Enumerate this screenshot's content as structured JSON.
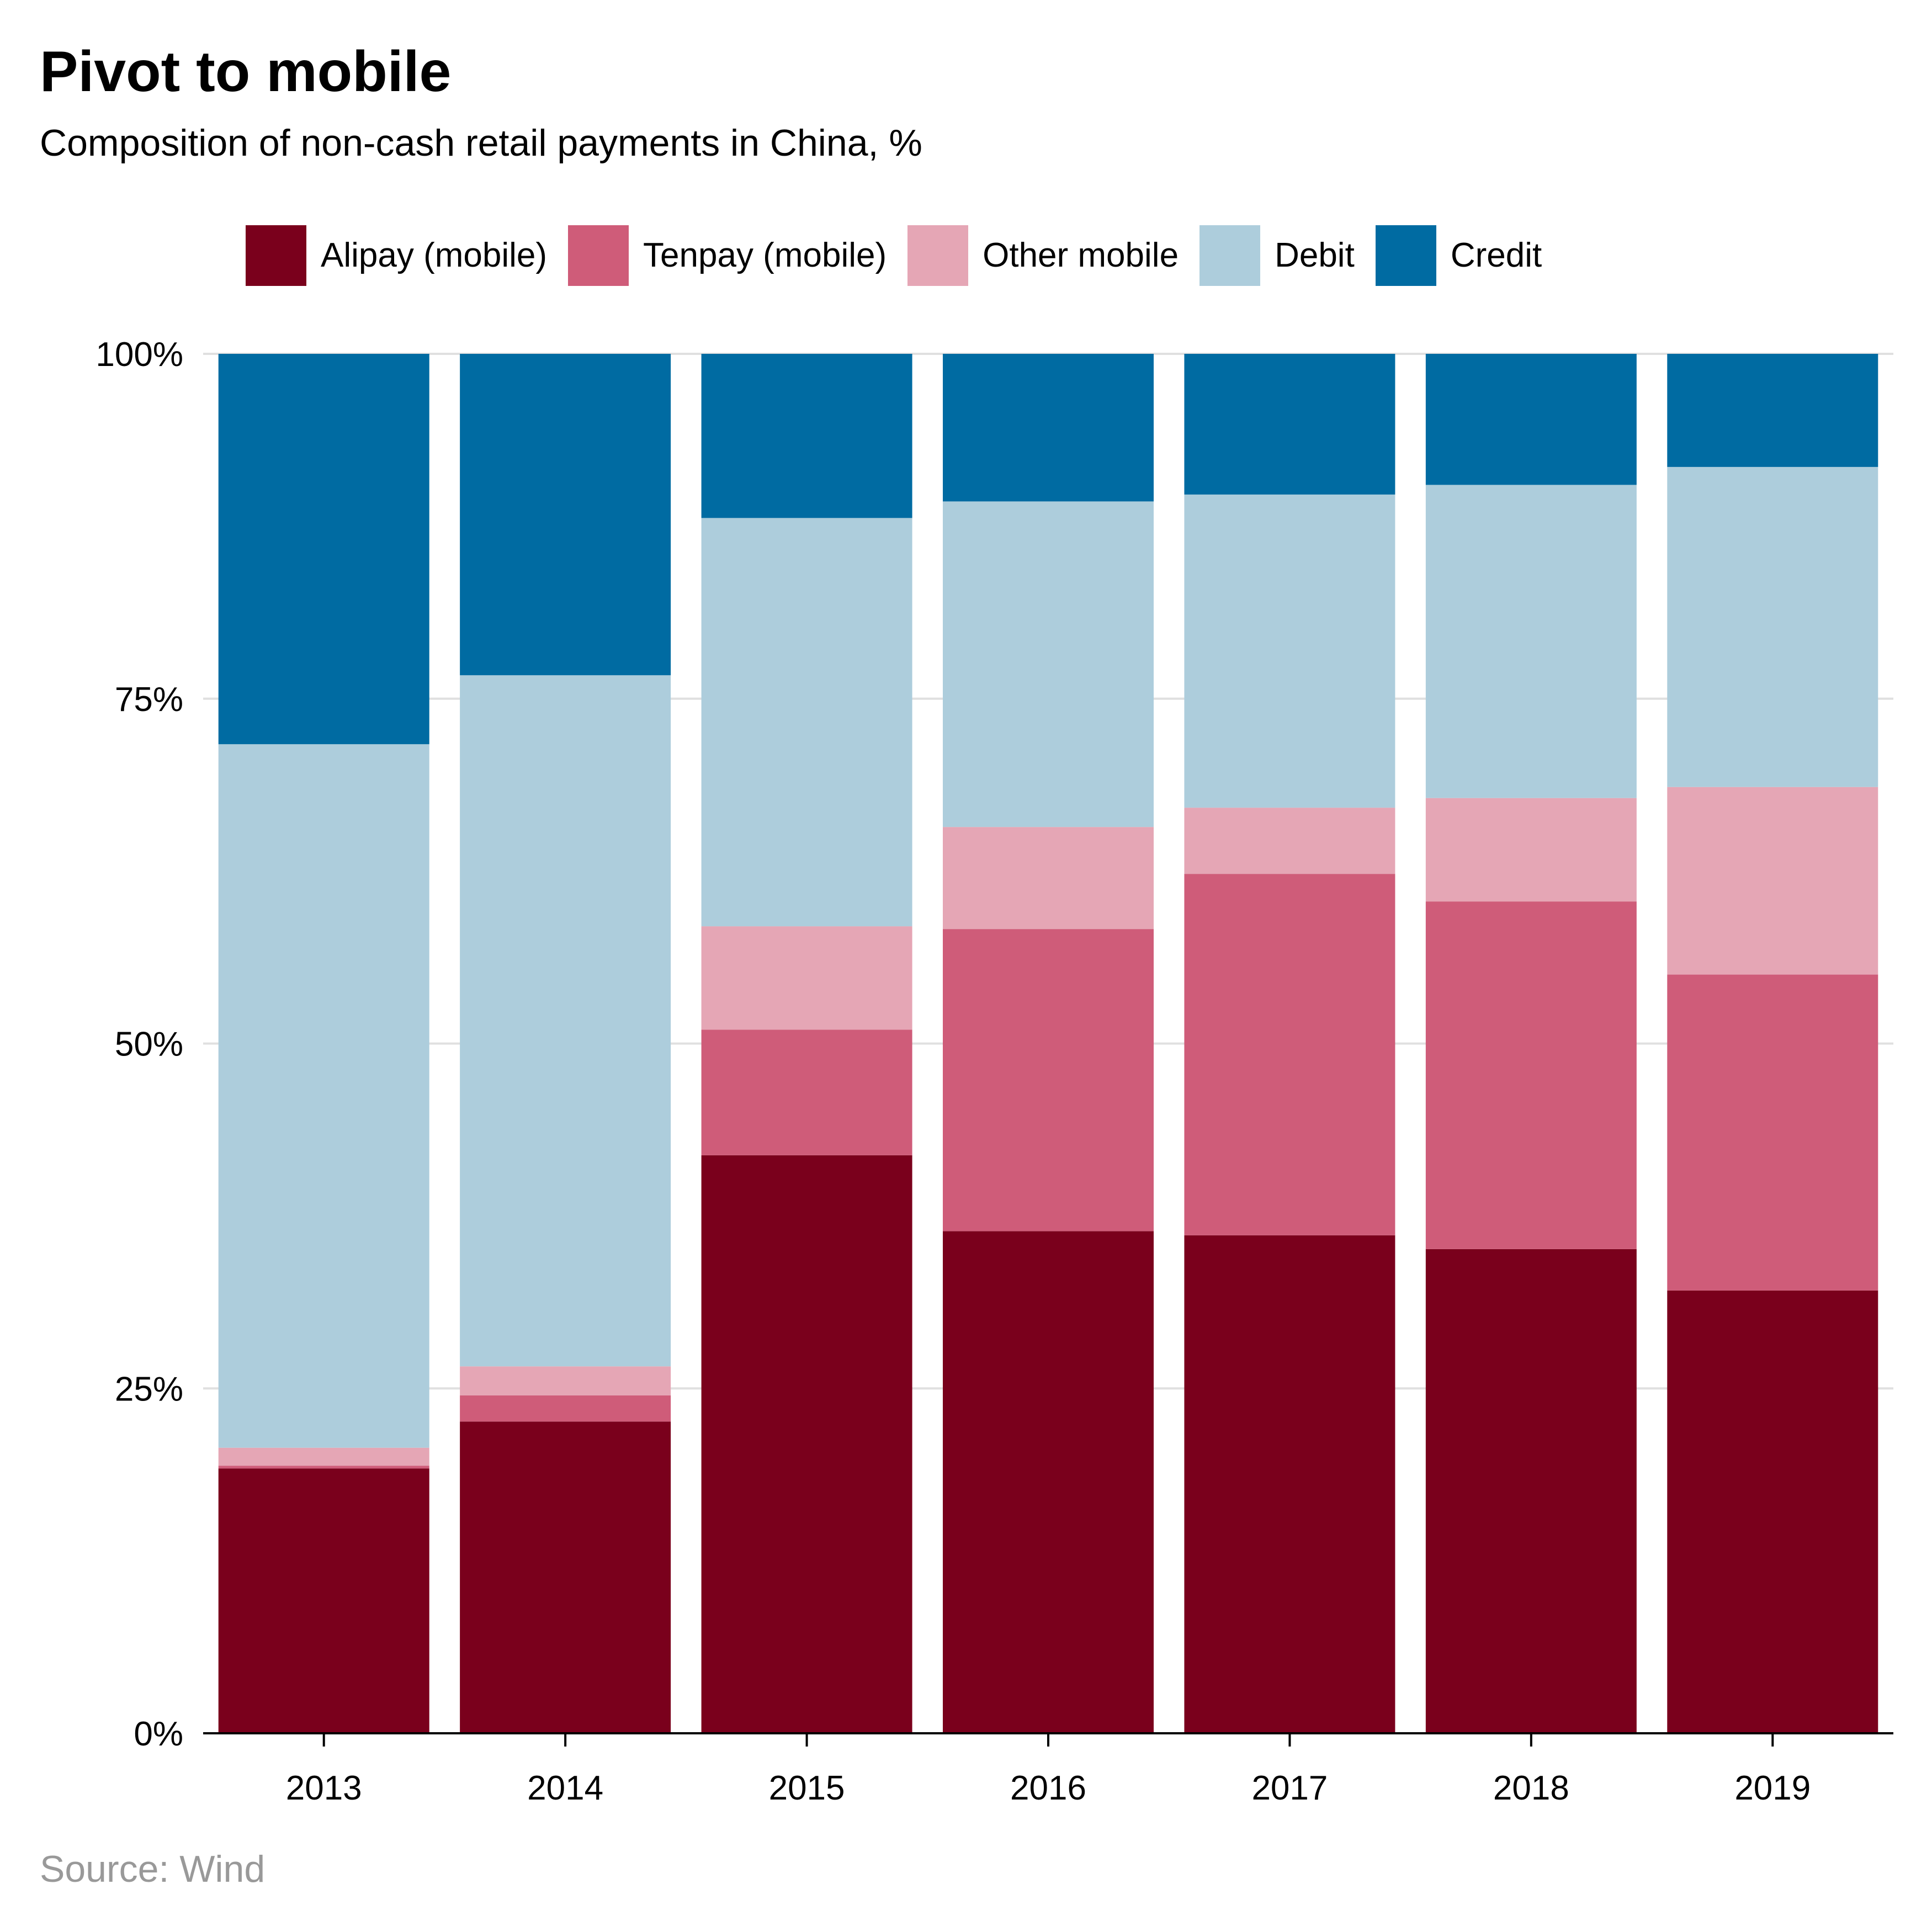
{
  "title": "Pivot to mobile",
  "subtitle": "Composition of non-cash retail payments in China, %",
  "source": "Source: Wind",
  "legend": [
    {
      "label": "Alipay (mobile)",
      "color": "#7a001c"
    },
    {
      "label": "Tenpay (mobile)",
      "color": "#cf5c79"
    },
    {
      "label": "Other mobile",
      "color": "#e5a6b5"
    },
    {
      "label": "Debit",
      "color": "#adcddc"
    },
    {
      "label": "Credit",
      "color": "#006ba2"
    }
  ],
  "chart_data": {
    "type": "bar",
    "stacked": true,
    "title": "Pivot to mobile",
    "subtitle": "Composition of non-cash retail payments in China, %",
    "xlabel": "",
    "ylabel": "",
    "categories": [
      "2013",
      "2014",
      "2015",
      "2016",
      "2017",
      "2018",
      "2019"
    ],
    "ylim": [
      0,
      100
    ],
    "yticks": [
      0,
      25,
      50,
      75,
      100
    ],
    "ytick_labels": [
      "0%",
      "25%",
      "50%",
      "75%",
      "100%"
    ],
    "grid": true,
    "legend_position": "top",
    "series": [
      {
        "name": "Alipay (mobile)",
        "color": "#7a001c",
        "values": [
          19.2,
          22.6,
          41.9,
          36.4,
          36.1,
          35.1,
          32.1
        ]
      },
      {
        "name": "Tenpay (mobile)",
        "color": "#cf5c79",
        "values": [
          0.2,
          1.9,
          9.1,
          21.9,
          26.2,
          25.2,
          22.9
        ]
      },
      {
        "name": "Other mobile",
        "color": "#e5a6b5",
        "values": [
          1.3,
          2.1,
          7.5,
          7.4,
          4.8,
          7.5,
          13.6
        ]
      },
      {
        "name": "Debit",
        "color": "#adcddc",
        "values": [
          51.0,
          50.1,
          29.6,
          23.6,
          22.7,
          22.7,
          23.2
        ]
      },
      {
        "name": "Credit",
        "color": "#006ba2",
        "values": [
          28.3,
          23.3,
          11.9,
          10.7,
          10.2,
          9.5,
          8.2
        ]
      }
    ]
  }
}
